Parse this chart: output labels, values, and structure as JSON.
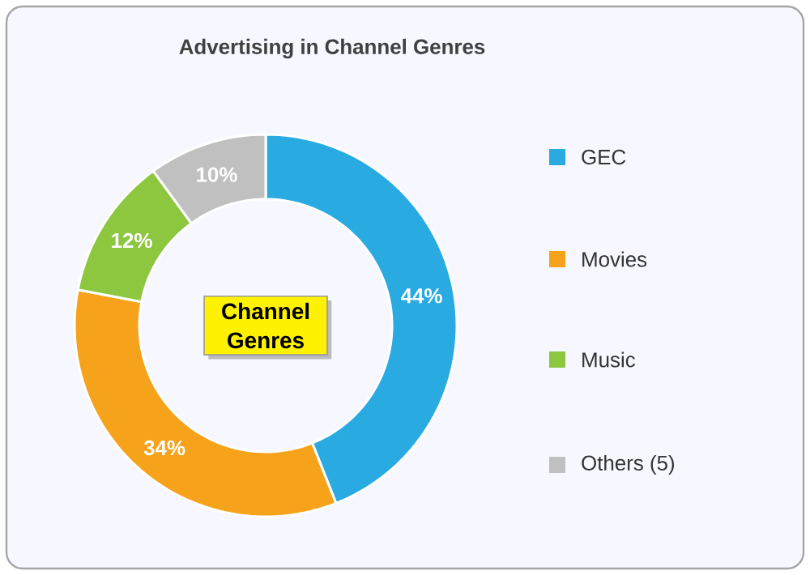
{
  "chart_data": {
    "type": "donut",
    "title": "Advertising in Channel Genres",
    "categories": [
      "GEC",
      "Movies",
      "Music",
      "Others (5)"
    ],
    "values": [
      44,
      34,
      12,
      10
    ],
    "colors": [
      "#29abe2",
      "#f7a21b",
      "#8dc63f",
      "#c0c0c0"
    ],
    "value_labels": [
      "44%",
      "34%",
      "12%",
      "10%"
    ],
    "legend": "right",
    "annotations": [
      "Channel Genres"
    ]
  }
}
